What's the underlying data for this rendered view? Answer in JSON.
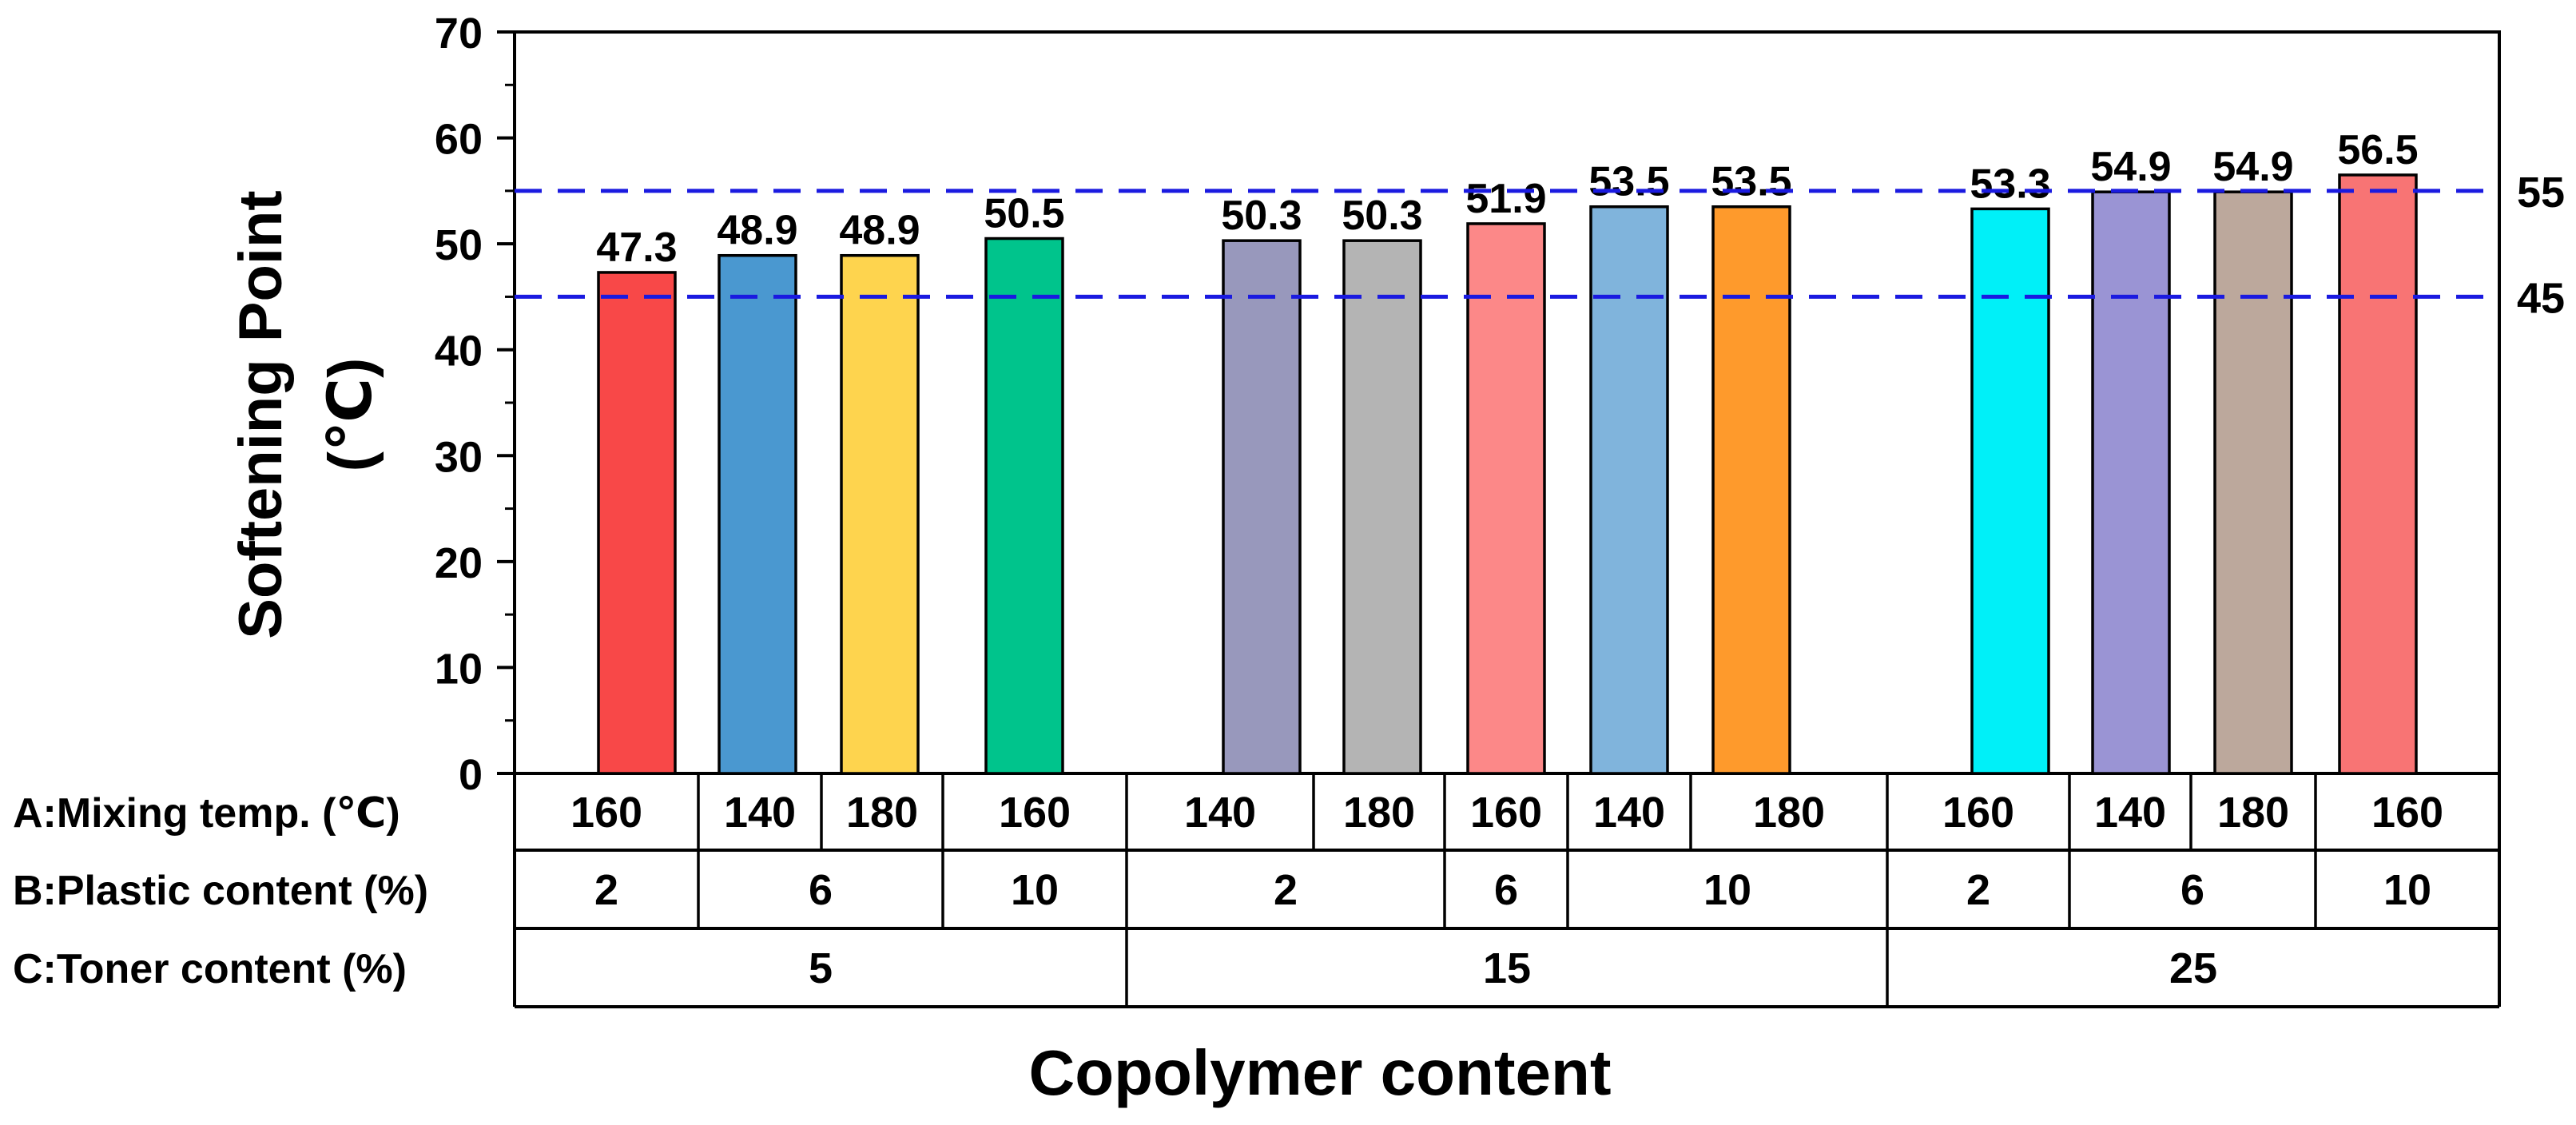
{
  "chart_data": {
    "type": "bar",
    "ylabel_line1": "Softening Point",
    "ylabel_line2": "(℃)",
    "xlabel": "Copolymer content",
    "ylim": [
      0,
      70
    ],
    "y_ticks": [
      "0",
      "10",
      "20",
      "30",
      "40",
      "50",
      "60",
      "70"
    ],
    "values": [
      47.3,
      48.9,
      48.9,
      50.5,
      50.3,
      50.3,
      51.9,
      53.5,
      53.5,
      53.3,
      54.9,
      54.9,
      56.5
    ],
    "value_labels": [
      "47.3",
      "48.9",
      "48.9",
      "50.5",
      "50.3",
      "50.3",
      "51.9",
      "53.5",
      "53.5",
      "53.3",
      "54.9",
      "54.9",
      "56.5"
    ],
    "colors": [
      "#f84848",
      "#4a98d0",
      "#fed44e",
      "#00c48c",
      "#9898bc",
      "#b4b4b4",
      "#fc8888",
      "#80b4dc",
      "#fe9a2c",
      "#00f0f8",
      "#9a94d4",
      "#bca89c",
      "#f87474"
    ],
    "reference_lines": [
      {
        "value": 55,
        "label": "55",
        "color": "#1a1ae0"
      },
      {
        "value": 45,
        "label": "45",
        "color": "#1a1ae0"
      }
    ],
    "grid": false,
    "factor_table": {
      "rows": [
        {
          "label": "A:Mixing temp. (℃)",
          "cells": [
            {
              "text": "160",
              "span": 1
            },
            {
              "text": "140",
              "span": 1
            },
            {
              "text": "180",
              "span": 1
            },
            {
              "text": "160",
              "span": 1
            },
            {
              "text": "140",
              "span": 1
            },
            {
              "text": "180",
              "span": 1
            },
            {
              "text": "160",
              "span": 1
            },
            {
              "text": "140",
              "span": 1
            },
            {
              "text": "180",
              "span": 1
            },
            {
              "text": "160",
              "span": 1
            },
            {
              "text": "140",
              "span": 1
            },
            {
              "text": "180",
              "span": 1
            },
            {
              "text": "160",
              "span": 1
            }
          ]
        },
        {
          "label": "B:Plastic content (%)",
          "cells": [
            {
              "text": "2",
              "span": 1
            },
            {
              "text": "6",
              "span": 2
            },
            {
              "text": "10",
              "span": 1
            },
            {
              "text": "2",
              "span": 2
            },
            {
              "text": "6",
              "span": 1
            },
            {
              "text": "10",
              "span": 2
            },
            {
              "text": "2",
              "span": 1
            },
            {
              "text": "6",
              "span": 2
            },
            {
              "text": "10",
              "span": 1
            }
          ]
        },
        {
          "label": "C:Toner content (%)",
          "cells": [
            {
              "text": "5",
              "span": 4
            },
            {
              "text": "15",
              "span": 5
            },
            {
              "text": "25",
              "span": 4
            }
          ]
        }
      ]
    }
  }
}
